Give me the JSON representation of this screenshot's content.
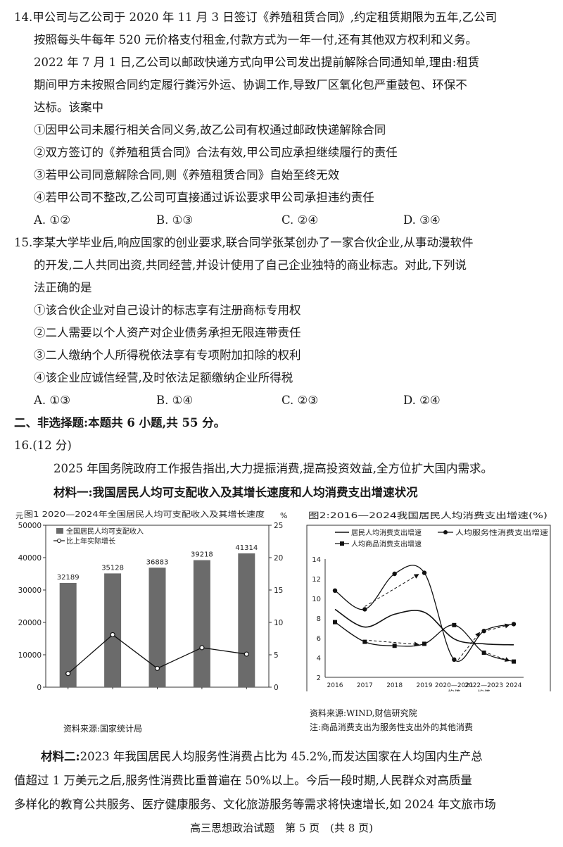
{
  "q14": {
    "lines": [
      "14.甲公司与乙公司于 2020 年 11 月 3 日签订《养殖租赁合同》,约定租赁期限为五年,乙公司",
      "按照每头牛每年 520 元价格支付租金,付款方式为一年一付,还有其他双方权利和义务。",
      "2022 年 7 月 1 日,乙公司以邮政快递方式向甲公司发出提前解除合同通知单,理由:租赁",
      "期间甲方未按照合同约定履行粪污外运、协调工作,导致厂区氧化包严重鼓包、环保不",
      "达标。该案中"
    ],
    "items": [
      "①因甲公司未履行相关合同义务,故乙公司有权通过邮政快递解除合同",
      "②双方签订的《养殖租赁合同》合法有效,甲公司应承担继续履行的责任",
      "③若甲公司同意解除合同,则《养殖租赁合同》自始至终无效",
      "④若甲公司不整改,乙公司可直接通过诉讼要求甲公司承担违约责任"
    ],
    "options": [
      "A. ①②",
      "B. ①③",
      "C. ②④",
      "D. ③④"
    ]
  },
  "q15": {
    "lines": [
      "15.李某大学毕业后,响应国家的创业要求,联合同学张某创办了一家合伙企业,从事动漫软件",
      "的开发,二人共同出资,共同经营,并设计使用了自己企业独特的商业标志。对此,下列说",
      "法正确的是"
    ],
    "items": [
      "①该合伙企业对自己设计的标志享有注册商标专用权",
      "②二人需要以个人资产对企业债务承担无限连带责任",
      "③二人缴纳个人所得税依法享有专项附加扣除的权利",
      "④该企业应诚信经营,及时依法足额缴纳企业所得税"
    ],
    "options": [
      "A. ①③",
      "B. ①④",
      "C. ②③",
      "D. ②④"
    ]
  },
  "section2": {
    "title": "二、非选择题:本题共 6 小题,共 55 分。"
  },
  "q16": {
    "header": "16.(12 分)",
    "intro": "2025 年国务院政府工作报告指出,大力提振消费,提高投资效益,全方位扩大国内需求。",
    "material1": "材料一:我国居民人均可支配收入及其增长速度和人均消费支出增速状况",
    "material2_label": "材料二:",
    "material2_lines": [
      "2023 年我国居民人均服务性消费占比为 45.2%,而发达国家在人均国内生产总",
      "值超过 1 万美元之后,服务性消费比重普遍在 50%以上。今后一段时期,人民群众对高质量",
      "多样化的教育公共服务、医疗健康服务、文化旅游服务等需求将快速增长,如 2024 年文旅市场"
    ]
  },
  "chart_data": [
    {
      "type": "bar+line",
      "title": "图1 2020—2024年全国居民人均可支配收入及其增长速度",
      "left_unit": "元",
      "right_unit": "%",
      "categories": [
        "2020",
        "2021",
        "2022",
        "2023",
        "2024"
      ],
      "series": [
        {
          "name": "全国居民人均可支配收入",
          "kind": "bar",
          "axis": "left",
          "values": [
            32189,
            35128,
            36883,
            39218,
            41314
          ]
        },
        {
          "name": "比上年实际增长",
          "kind": "line",
          "axis": "right",
          "values": [
            2.1,
            8.1,
            2.9,
            6.1,
            5.1
          ]
        }
      ],
      "left_ylim": [
        0,
        50000
      ],
      "left_ticks": [
        "0",
        "10000",
        "20000",
        "30000",
        "40000",
        "50000"
      ],
      "right_ylim": [
        0,
        25
      ],
      "right_ticks": [
        "0",
        "5",
        "10",
        "15",
        "20",
        "25"
      ],
      "source": "资料来源:国家统计局"
    },
    {
      "type": "line",
      "title": "图2:2016—2024我国居民人均消费支出增速(%)",
      "categories": [
        "2016",
        "2017",
        "2018",
        "2019",
        "2020-2021\n均值",
        "2022-2023\n均值",
        "2024"
      ],
      "tick_labels": [
        "2016",
        "2017",
        "2018",
        "2019",
        "2020—2021",
        "2022—2023",
        "2024"
      ],
      "tick_sublabels": [
        "",
        "",
        "",
        "",
        "均值",
        "均值",
        ""
      ],
      "series": [
        {
          "name": "居民人均消费支出增速",
          "marker": "none",
          "values": [
            8.9,
            7.1,
            8.4,
            8.6,
            5.9,
            5.4,
            5.3
          ]
        },
        {
          "name": "人均服务性消费支出增速",
          "marker": "circle",
          "values": [
            10.8,
            8.9,
            12.5,
            12.6,
            3.8,
            6.7,
            7.4
          ]
        },
        {
          "name": "人均商品消费支出增速",
          "marker": "square",
          "values": [
            7.6,
            5.6,
            5.2,
            5.4,
            7.3,
            4.5,
            3.6
          ]
        }
      ],
      "ylim": [
        2,
        14
      ],
      "yticks": [
        "2",
        "4",
        "6",
        "8",
        "10",
        "12",
        "14"
      ],
      "source": "资料来源:WIND,财信研究院",
      "note": "注:商品消费支出为服务性支出外的其他消费"
    }
  ],
  "footer": {
    "text": "高三思想政治试题　第 5 页　(共 8 页)"
  }
}
